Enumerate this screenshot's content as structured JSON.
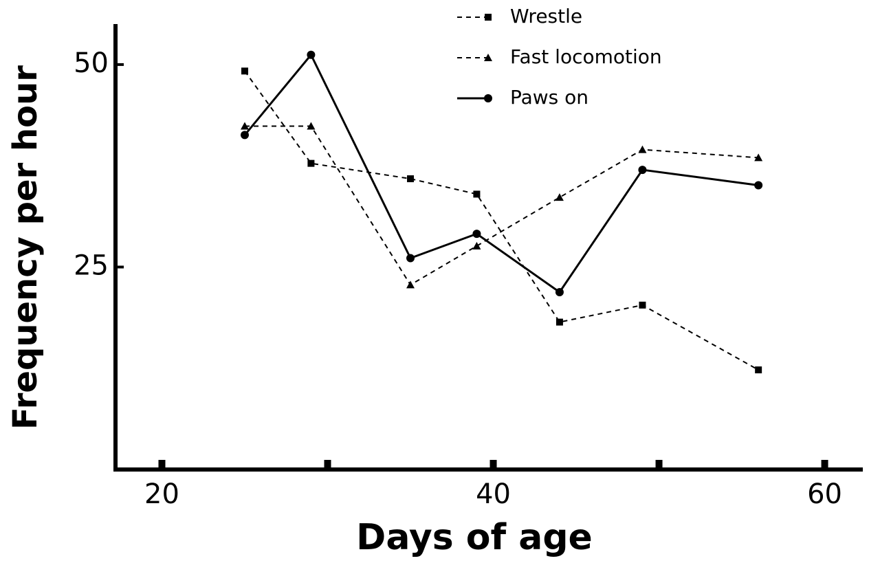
{
  "chart_data": {
    "type": "line",
    "xlabel": "Days of age",
    "ylabel": "Frequency per hour",
    "x": [
      25,
      29,
      35,
      39,
      44,
      49,
      56
    ],
    "series": [
      {
        "name": "Wrestle",
        "color": "#000000",
        "dash": "dashed",
        "marker": "square",
        "values": [
          49.2,
          37.8,
          35.9,
          34.0,
          18.2,
          20.3,
          12.3
        ]
      },
      {
        "name": "Fast locomotion",
        "color": "#000000",
        "dash": "dashed",
        "marker": "triangle",
        "values": [
          42.4,
          42.4,
          22.8,
          27.6,
          33.6,
          39.5,
          38.5
        ]
      },
      {
        "name": "Paws on",
        "color": "#000000",
        "dash": "solid",
        "marker": "circle",
        "values": [
          41.3,
          51.2,
          26.1,
          29.1,
          21.9,
          37.0,
          35.1
        ]
      }
    ],
    "xlim": [
      17.2,
      62.3
    ],
    "xticks": [
      20,
      40,
      60
    ],
    "xminor_ticks": [
      30,
      50
    ],
    "ylim": [
      0,
      55
    ],
    "yticks": [
      25,
      50
    ],
    "legend": "top"
  }
}
